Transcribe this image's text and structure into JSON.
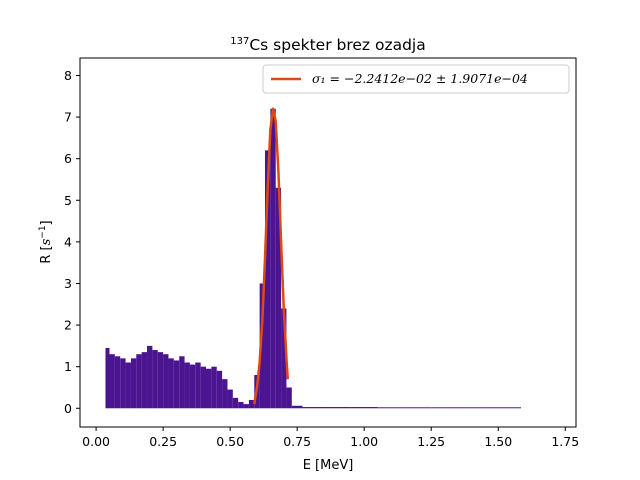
{
  "chart_data": {
    "type": "bar",
    "title_sup": "137",
    "title_main": "Cs spekter brez ozadja",
    "xlabel": "E [MeV]",
    "ylabel_main": "R [",
    "ylabel_unit": "s",
    "ylabel_exp": "−1",
    "ylabel_close": "]",
    "xlim": [
      -0.06,
      1.79
    ],
    "ylim": [
      -0.45,
      8.42
    ],
    "xticks": [
      "0.00",
      "0.25",
      "0.50",
      "0.75",
      "1.00",
      "1.25",
      "1.50",
      "1.75"
    ],
    "xtick_values": [
      0.0,
      0.25,
      0.5,
      0.75,
      1.0,
      1.25,
      1.5,
      1.75
    ],
    "yticks": [
      "0",
      "1",
      "2",
      "3",
      "4",
      "5",
      "6",
      "7",
      "8"
    ],
    "ytick_values": [
      0,
      1,
      2,
      3,
      4,
      5,
      6,
      7,
      8
    ],
    "grid": false,
    "legend_position": "top-right",
    "legend_label": "σ₁ = −2.2412e−02 ± 1.9071e−04",
    "colors": {
      "histogram": "#4b1491",
      "fit": "#dd4b15"
    },
    "histogram": {
      "x": [
        0.04,
        0.06,
        0.08,
        0.1,
        0.12,
        0.14,
        0.16,
        0.18,
        0.2,
        0.22,
        0.24,
        0.26,
        0.28,
        0.3,
        0.32,
        0.34,
        0.36,
        0.38,
        0.4,
        0.42,
        0.44,
        0.46,
        0.48,
        0.5,
        0.52,
        0.54,
        0.56,
        0.58,
        0.6,
        0.62,
        0.64,
        0.66,
        0.68,
        0.7,
        0.72,
        0.74,
        0.8,
        0.9,
        1.0,
        1.1,
        1.2,
        1.3,
        1.4,
        1.5,
        1.58
      ],
      "values": [
        1.45,
        1.3,
        1.25,
        1.2,
        1.1,
        1.2,
        1.3,
        1.35,
        1.5,
        1.4,
        1.35,
        1.3,
        1.2,
        1.15,
        1.25,
        1.1,
        1.05,
        1.1,
        1.0,
        0.95,
        1.0,
        0.9,
        0.7,
        0.45,
        0.25,
        0.15,
        0.1,
        0.2,
        0.8,
        3.0,
        6.2,
        7.2,
        5.3,
        2.4,
        0.5,
        0.06,
        0.03,
        0.03,
        0.03,
        0.02,
        0.02,
        0.02,
        0.02,
        0.02,
        0.02
      ]
    },
    "fit": {
      "x": [
        0.59,
        0.6,
        0.61,
        0.62,
        0.63,
        0.64,
        0.65,
        0.66,
        0.67,
        0.68,
        0.69,
        0.7,
        0.71,
        0.715
      ],
      "values": [
        0.1,
        0.5,
        1.1,
        2.1,
        3.6,
        5.3,
        6.7,
        7.2,
        6.9,
        5.7,
        4.0,
        2.4,
        1.2,
        0.7
      ]
    }
  }
}
